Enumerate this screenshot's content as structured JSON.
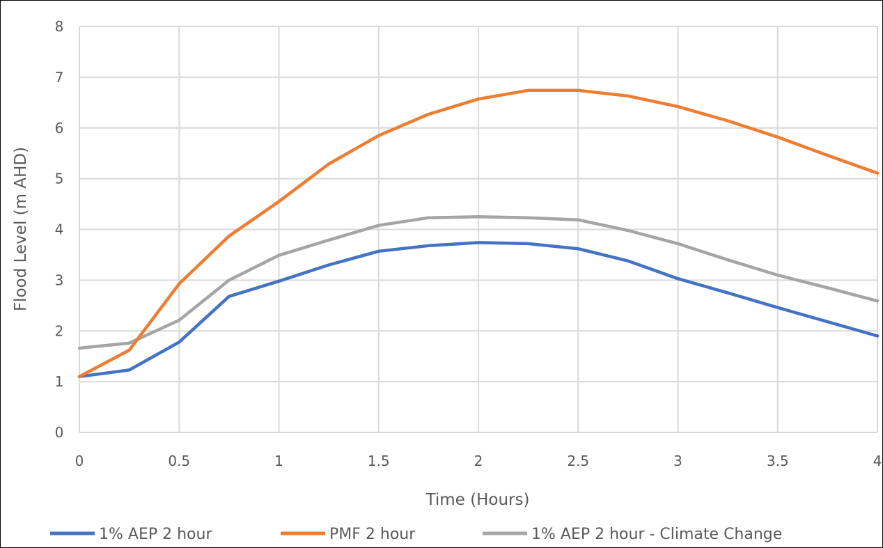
{
  "chart_data": {
    "type": "line",
    "title": "",
    "xlabel": "Time (Hours)",
    "ylabel": "Flood Level (m AHD)",
    "xlim": [
      0,
      4
    ],
    "ylim": [
      0,
      8
    ],
    "x_ticks": [
      "0",
      "0.5",
      "1",
      "1.5",
      "2",
      "2.5",
      "3",
      "3.5",
      "4"
    ],
    "y_ticks": [
      "0",
      "1",
      "2",
      "3",
      "4",
      "5",
      "6",
      "7",
      "8"
    ],
    "grid": true,
    "legend_position": "bottom",
    "x": [
      0,
      0.25,
      0.5,
      0.75,
      1,
      1.25,
      1.5,
      1.75,
      2,
      2.25,
      2.5,
      2.75,
      3,
      3.25,
      3.5,
      3.75,
      4
    ],
    "series": [
      {
        "name": "1% AEP 2 hour",
        "color": "#4472C4",
        "values": [
          1.1,
          1.23,
          1.78,
          2.68,
          2.98,
          3.3,
          3.57,
          3.68,
          3.74,
          3.72,
          3.62,
          3.38,
          3.03,
          2.75,
          2.46,
          2.18,
          1.9
        ]
      },
      {
        "name": "PMF 2 hour",
        "color": "#ED7D31",
        "values": [
          1.1,
          1.62,
          2.93,
          3.87,
          4.55,
          5.29,
          5.85,
          6.27,
          6.57,
          6.74,
          6.74,
          6.63,
          6.42,
          6.14,
          5.82,
          5.46,
          5.11
        ]
      },
      {
        "name": "1% AEP 2 hour - Climate Change",
        "color": "#A5A5A5",
        "values": [
          1.66,
          1.76,
          2.21,
          3.0,
          3.49,
          3.79,
          4.08,
          4.23,
          4.25,
          4.23,
          4.19,
          3.98,
          3.72,
          3.4,
          3.1,
          2.85,
          2.59
        ]
      }
    ]
  }
}
